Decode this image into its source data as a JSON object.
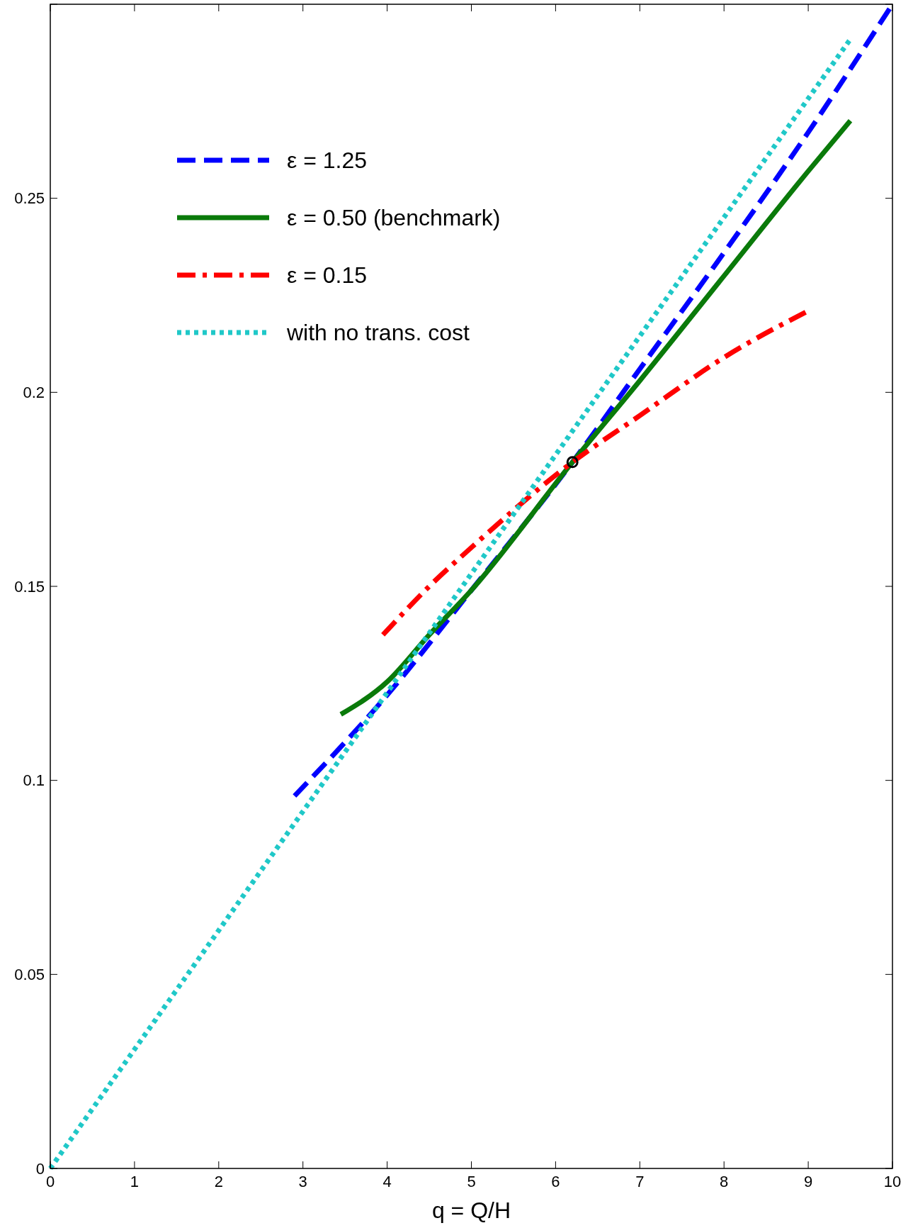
{
  "chart_data": {
    "type": "line",
    "xlabel": "q = Q/H",
    "xlim": [
      0,
      10
    ],
    "ylim": [
      0,
      0.3
    ],
    "xticks": [
      0,
      1,
      2,
      3,
      4,
      5,
      6,
      7,
      8,
      9,
      10
    ],
    "yticks": [
      0,
      0.05,
      0.1,
      0.15,
      0.2,
      0.25,
      {
        "value": 0.3,
        "label": null
      }
    ],
    "grid": false,
    "legend": "top left",
    "series": [
      {
        "name": "ε = 1.25",
        "color": "#0000ff",
        "line_style": "dashed",
        "x": [
          2.9,
          4,
          5,
          6.2,
          7,
          8,
          9,
          10
        ],
        "values": [
          0.096,
          0.122,
          0.149,
          0.182,
          0.206,
          0.236,
          0.267,
          0.3
        ]
      },
      {
        "name": "ε = 0.50 (benchmark)",
        "color": "#0a7a0a",
        "line_style": "solid",
        "x": [
          3.45,
          4,
          4.5,
          5,
          6.2,
          7,
          8,
          9,
          9.5
        ],
        "values": [
          0.117,
          0.1254,
          0.1375,
          0.149,
          0.182,
          0.203,
          0.23,
          0.257,
          0.27
        ]
      },
      {
        "name": "ε = 0.15",
        "color": "#ff0000",
        "line_style": "dashdot",
        "x": [
          3.95,
          4.5,
          5,
          6.2,
          7,
          8,
          9
        ],
        "values": [
          0.1375,
          0.15,
          0.16,
          0.182,
          0.194,
          0.209,
          0.221
        ]
      },
      {
        "name": "with no trans. cost",
        "color": "#20c8c8",
        "line_style": "dotted",
        "x": [
          0,
          3,
          6.2,
          9.5
        ],
        "values": [
          0,
          0.092,
          0.19,
          0.291
        ]
      },
      {
        "type": "scatter",
        "color": "#000000",
        "marker": "circle",
        "x": [
          6.2
        ],
        "values": [
          0.182
        ]
      }
    ]
  }
}
